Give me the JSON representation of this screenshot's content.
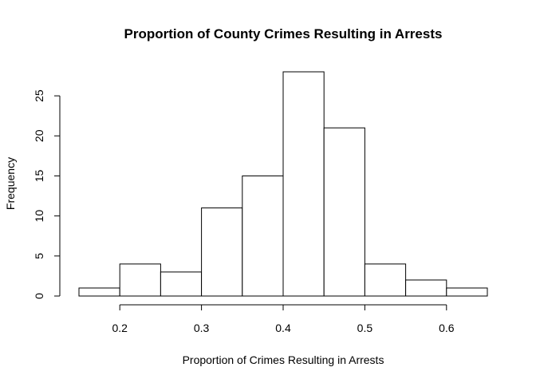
{
  "chart_data": {
    "type": "bar",
    "title": "Proportion of County Crimes Resulting in Arrests",
    "xlabel": "Proportion of Crimes Resulting in Arrests",
    "ylabel": "Frequency",
    "bin_edges": [
      0.15,
      0.2,
      0.25,
      0.3,
      0.35,
      0.4,
      0.45,
      0.5,
      0.55,
      0.6,
      0.65
    ],
    "values": [
      1,
      4,
      3,
      11,
      15,
      28,
      21,
      4,
      2,
      1
    ],
    "xlim": [
      0.15,
      0.65
    ],
    "ylim": [
      0,
      28
    ],
    "x_ticks": [
      0.2,
      0.3,
      0.4,
      0.5,
      0.6
    ],
    "x_tick_labels": [
      "0.2",
      "0.3",
      "0.4",
      "0.5",
      "0.6"
    ],
    "y_ticks": [
      0,
      5,
      10,
      15,
      20,
      25
    ],
    "y_tick_labels": [
      "0",
      "5",
      "10",
      "15",
      "20",
      "25"
    ],
    "grid": false,
    "bar_fill": "#ffffff",
    "bar_stroke": "#000000"
  }
}
